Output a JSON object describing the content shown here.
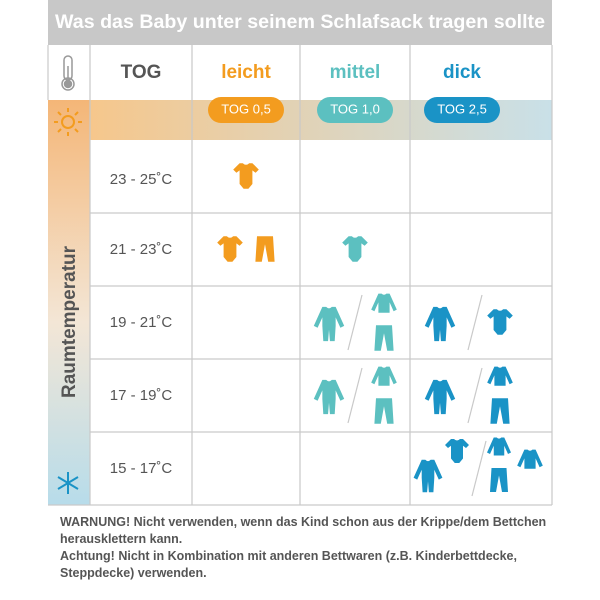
{
  "header": {
    "title": "Was das Baby unter seinem Schlafsack tragen sollte"
  },
  "table": {
    "columns": [
      "TOG",
      "leicht",
      "mittel",
      "dick"
    ],
    "tog_values": [
      "TOG 0,5",
      "TOG 1,0",
      "TOG 2,5"
    ],
    "row_axis_label": "Raumtemperatur",
    "rows": [
      "23 - 25˚C",
      "21 - 23˚C",
      "19 - 21˚C",
      "17 - 19˚C",
      "15 - 17˚C"
    ]
  },
  "warnings": [
    "WARNUNG! Nicht verwenden, wenn das Kind schon aus der Krippe/dem Bettchen herausklettern kann.",
    "Achtung! Nicht in Kombination mit anderen Bettwaren (z.B. Kinderbettdecke, Steppdecke) verwenden."
  ]
}
